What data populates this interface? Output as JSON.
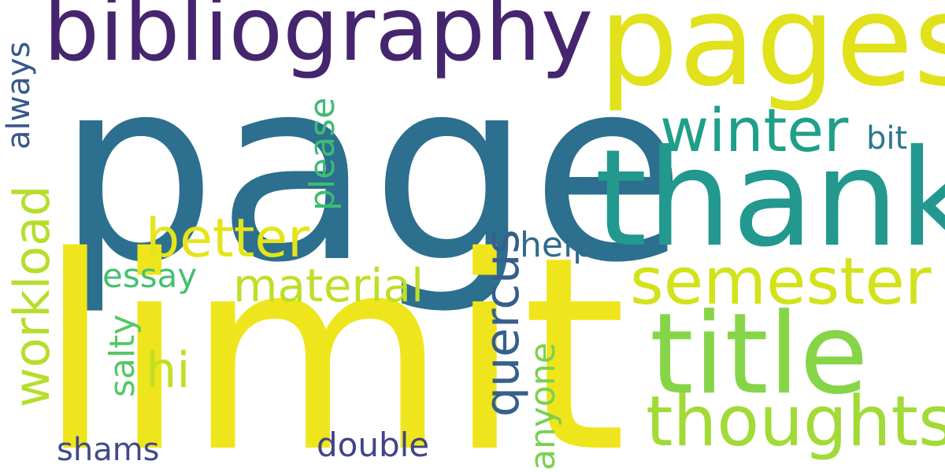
{
  "words": [
    {
      "key": "page",
      "text": "page",
      "color": "#2c6f8e"
    },
    {
      "key": "limit",
      "text": "limit",
      "color": "#efe51c"
    },
    {
      "key": "bibliography",
      "text": "bibliography",
      "color": "#46256f"
    },
    {
      "key": "pages",
      "text": "pages",
      "color": "#e1e11c"
    },
    {
      "key": "thank",
      "text": "thank",
      "color": "#22988e"
    },
    {
      "key": "title",
      "text": "title",
      "color": "#86d549"
    },
    {
      "key": "semester",
      "text": "semester",
      "color": "#d2e21b"
    },
    {
      "key": "thoughts",
      "text": "thoughts",
      "color": "#a2da37"
    },
    {
      "key": "winter",
      "text": "winter",
      "color": "#1f9f88"
    },
    {
      "key": "better",
      "text": "better",
      "color": "#e5e419"
    },
    {
      "key": "material",
      "text": "material",
      "color": "#bddf26"
    },
    {
      "key": "essay",
      "text": "essay",
      "color": "#44bf70"
    },
    {
      "key": "help",
      "text": "help",
      "color": "#2f6c8e"
    },
    {
      "key": "hi",
      "text": "hi",
      "color": "#c2df23"
    },
    {
      "key": "bit",
      "text": "bit",
      "color": "#2a788e"
    },
    {
      "key": "shams",
      "text": "shams",
      "color": "#3f4a8a"
    },
    {
      "key": "double",
      "text": "double",
      "color": "#414487"
    },
    {
      "key": "workload",
      "text": "workload",
      "color": "#b5de2b"
    },
    {
      "key": "always",
      "text": "always",
      "color": "#38588c"
    },
    {
      "key": "please",
      "text": "please",
      "color": "#3dbc74"
    },
    {
      "key": "quercus",
      "text": "quercus",
      "color": "#355f8d"
    },
    {
      "key": "salty",
      "text": "salty",
      "color": "#58c765"
    },
    {
      "key": "anyone",
      "text": "anyone",
      "color": "#7ad151"
    }
  ]
}
